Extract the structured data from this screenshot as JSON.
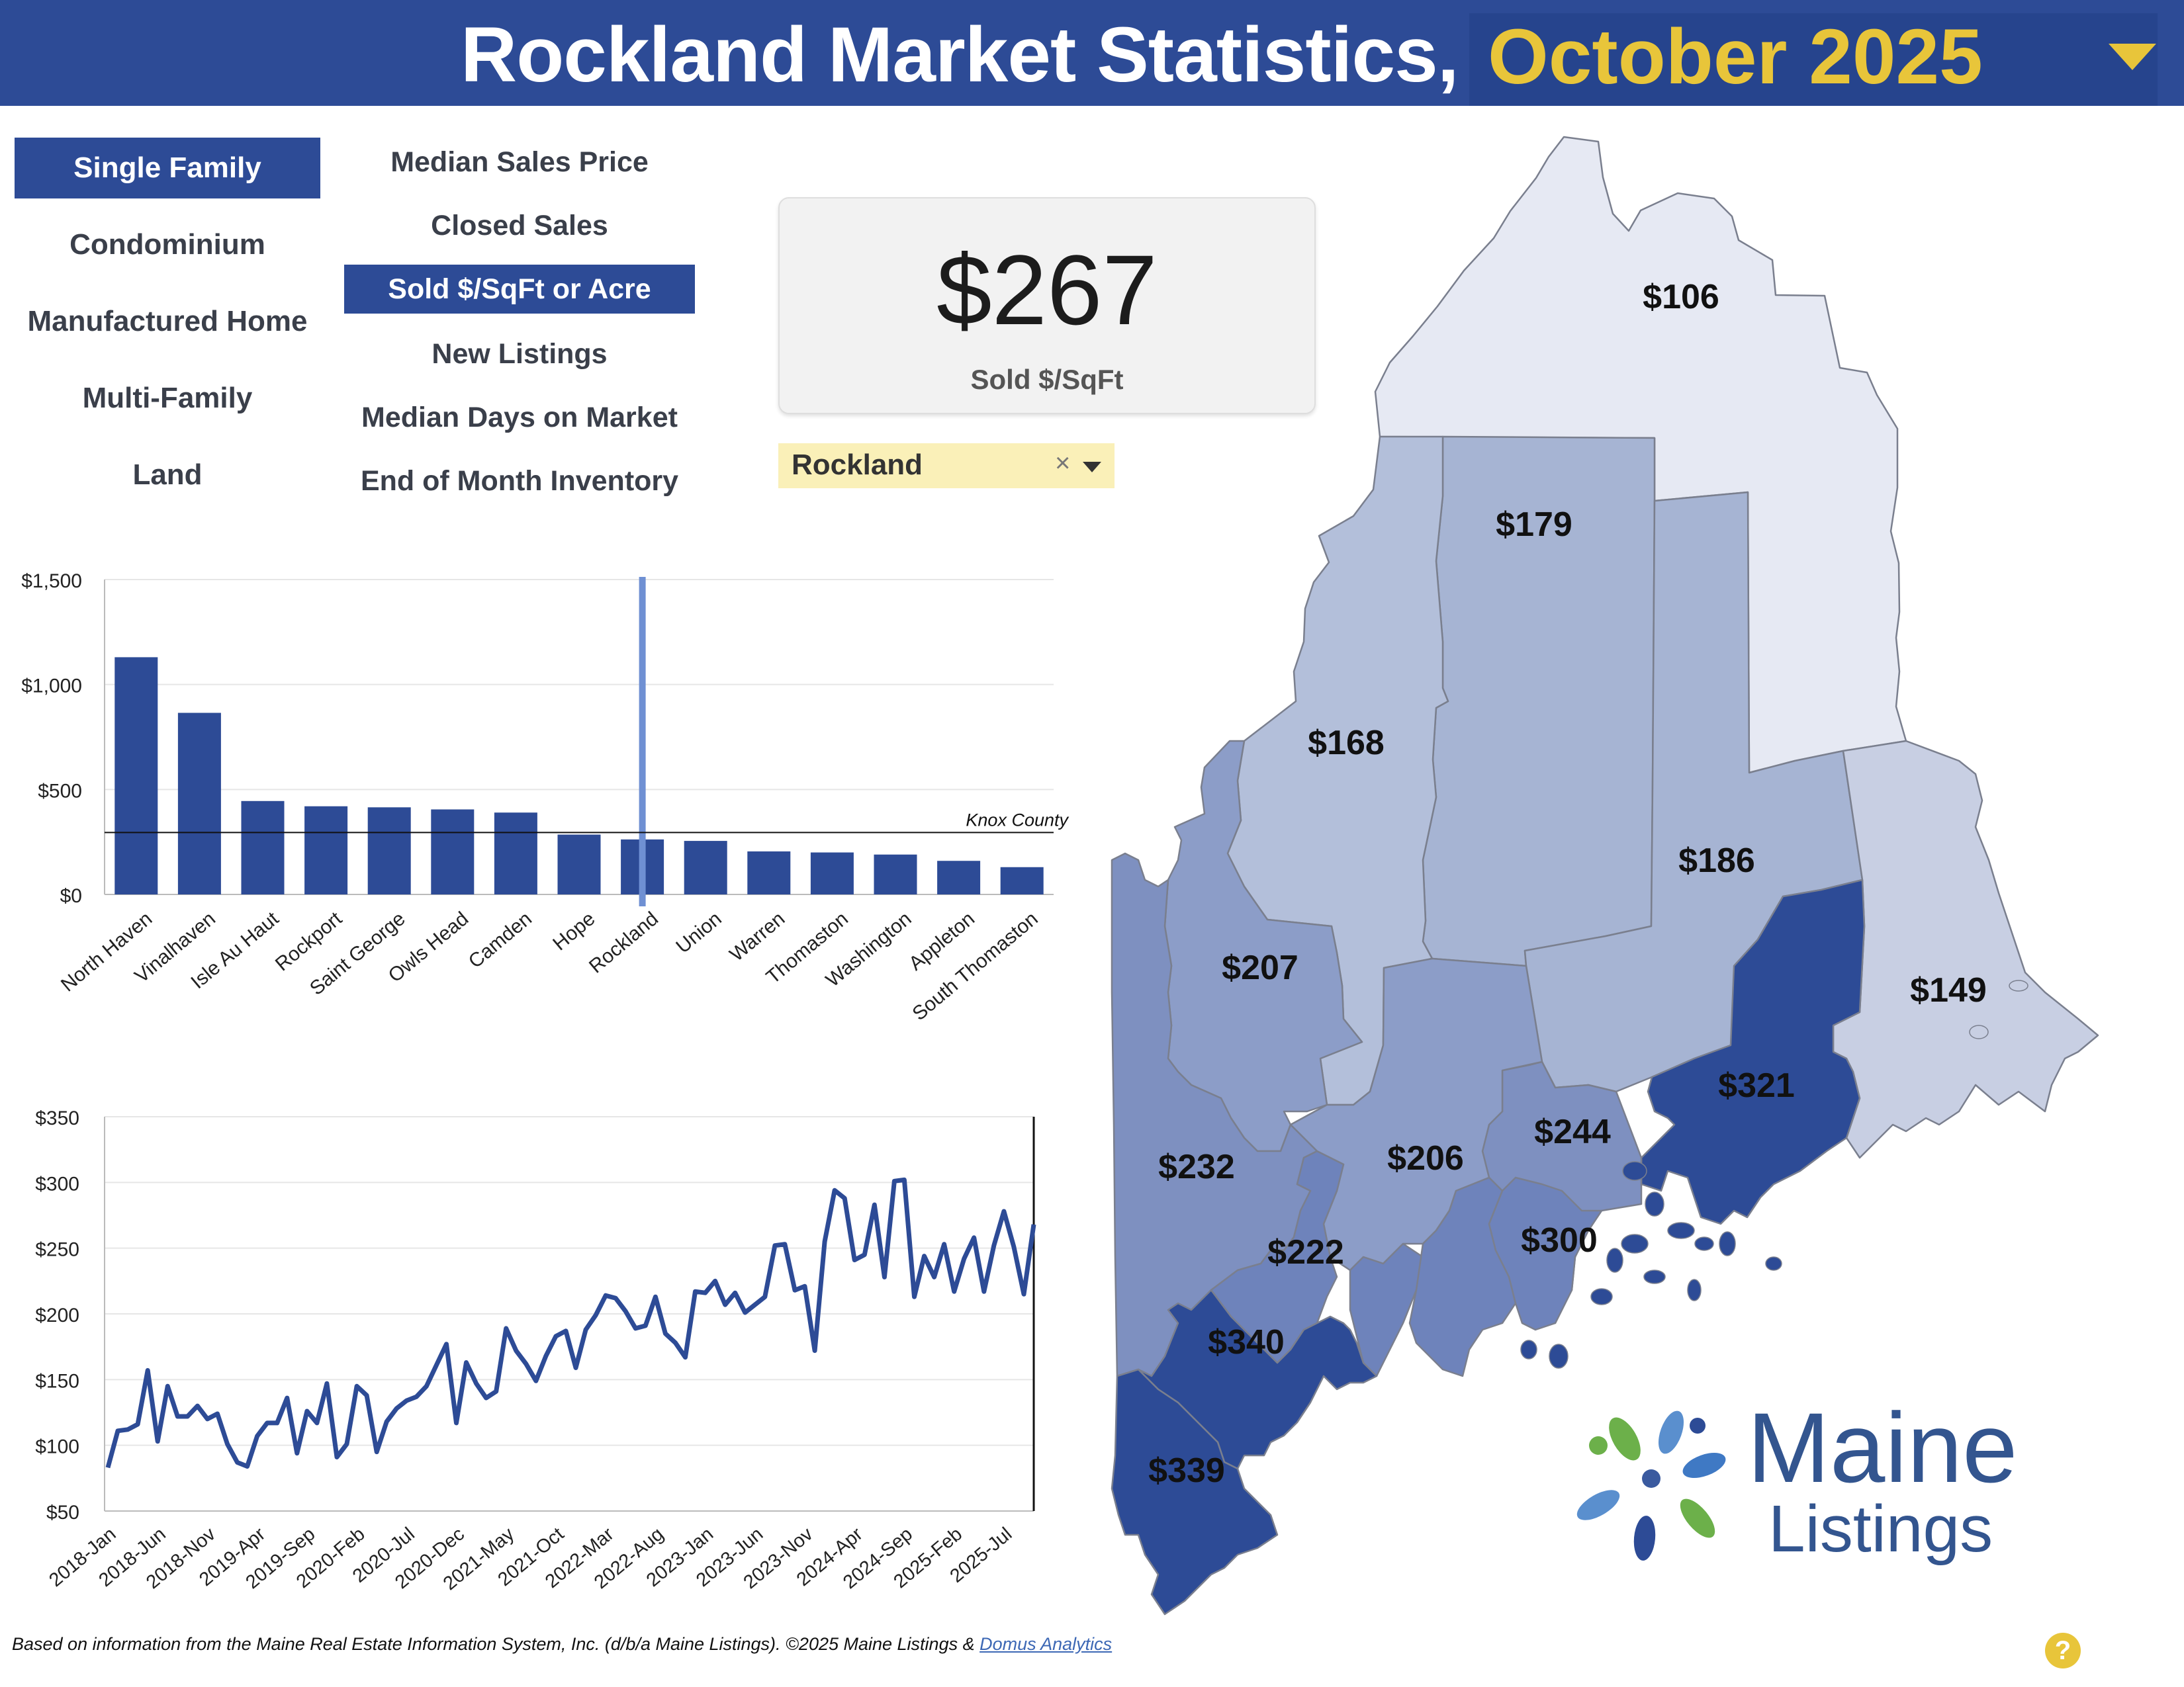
{
  "header": {
    "title": "Rockland Market Statistics,",
    "month": "October 2025"
  },
  "property_types": [
    {
      "label": "Single Family",
      "active": true
    },
    {
      "label": "Condominium",
      "active": false
    },
    {
      "label": "Manufactured Home",
      "active": false
    },
    {
      "label": "Multi-Family",
      "active": false
    },
    {
      "label": "Land",
      "active": false
    }
  ],
  "metrics": [
    {
      "label": "Median Sales Price",
      "active": false
    },
    {
      "label": "Closed Sales",
      "active": false
    },
    {
      "label": "Sold $/SqFt or Acre",
      "active": true
    },
    {
      "label": "New Listings",
      "active": false
    },
    {
      "label": "Median Days on Market",
      "active": false
    },
    {
      "label": "End of Month Inventory",
      "active": false
    }
  ],
  "kpi": {
    "value": "$267",
    "label": "Sold $/SqFt"
  },
  "selector": {
    "value": "Rockland",
    "clear": "×"
  },
  "map": {
    "labels": [
      "$106",
      "$179",
      "$168",
      "$186",
      "$149",
      "$207",
      "$321",
      "$244",
      "$232",
      "$206",
      "$300",
      "$222",
      "$340",
      "$339"
    ],
    "colors": {
      "lightest": "#e6e9f3",
      "light": "#c8cfe3",
      "mid_light": "#b3bfda",
      "mid": "#a6b4d3",
      "mid_dark": "#8c9dc8",
      "dark": "#7e90c0",
      "darker": "#6e83bb",
      "darkest": "#2d4b96"
    }
  },
  "logo": {
    "line1": "Maine",
    "line2": "Listings"
  },
  "footer": {
    "text": "Based on information from the Maine Real Estate Information System, Inc. (d/b/a Maine Listings).  ©2025 Maine Listings & ",
    "link": "Domus Analytics"
  },
  "help": {
    "label": "?"
  },
  "chart_data": [
    {
      "type": "bar",
      "categories": [
        "North Haven",
        "Vinalhaven",
        "Isle Au Haut",
        "Rockport",
        "Saint George",
        "Owls Head",
        "Camden",
        "Hope",
        "Rockland",
        "Union",
        "Warren",
        "Thomaston",
        "Washington",
        "Appleton",
        "South Thomaston"
      ],
      "values": [
        1130,
        865,
        445,
        420,
        415,
        405,
        390,
        285,
        262,
        255,
        205,
        200,
        190,
        160,
        130
      ],
      "ylim": [
        0,
        1500
      ],
      "yticks": [
        "$0",
        "$500",
        "$1,000",
        "$1,500"
      ],
      "reference_line": {
        "label": "Knox County",
        "value": 295
      },
      "highlight": "Rockland",
      "bar_color": "#2d4b96",
      "highlight_color": "#6f90d3"
    },
    {
      "type": "line",
      "x_ticks": [
        "2018-Jan",
        "2018-Jun",
        "2018-Nov",
        "2019-Apr",
        "2019-Sep",
        "2020-Feb",
        "2020-Jul",
        "2020-Dec",
        "2021-May",
        "2021-Oct",
        "2022-Mar",
        "2022-Aug",
        "2023-Jan",
        "2023-Jun",
        "2023-Nov",
        "2024-Apr",
        "2024-Sep",
        "2025-Feb",
        "2025-Jul"
      ],
      "values": [
        83,
        111,
        112,
        116,
        157,
        103,
        145,
        122,
        122,
        130,
        120,
        124,
        101,
        87,
        84,
        107,
        117,
        117,
        136,
        94,
        126,
        117,
        147,
        91,
        101,
        145,
        138,
        95,
        118,
        128,
        134,
        137,
        145,
        161,
        177,
        117,
        163,
        147,
        136,
        141,
        189,
        172,
        162,
        149,
        168,
        183,
        187,
        159,
        188,
        199,
        214,
        212,
        202,
        189,
        191,
        213,
        185,
        178,
        167,
        217,
        216,
        225,
        207,
        216,
        201,
        207,
        213,
        252,
        253,
        218,
        221,
        172,
        255,
        294,
        288,
        241,
        245,
        283,
        228,
        301,
        302,
        213,
        244,
        228,
        253,
        217,
        242,
        258,
        217,
        252,
        278,
        251,
        215,
        268
      ],
      "ylim": [
        50,
        350
      ],
      "yticks": [
        "$50",
        "$100",
        "$150",
        "$200",
        "$250",
        "$300",
        "$350"
      ],
      "line_color": "#2d4b96"
    }
  ]
}
